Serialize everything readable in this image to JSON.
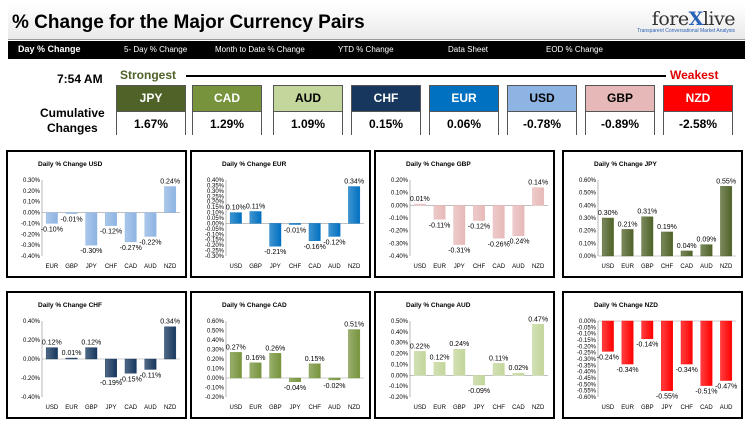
{
  "header": {
    "title": "% Change for the Major Currency Pairs",
    "logo_left": "fore",
    "logo_x": "X",
    "logo_right": "live",
    "logo_tagline": "Transparent Conversational Market Analysis"
  },
  "tabs": [
    {
      "label": "Day % Change",
      "active": true
    },
    {
      "label": "5- Day % Change",
      "active": false
    },
    {
      "label": "Month to Date % Change",
      "active": false
    },
    {
      "label": "YTD % Change",
      "active": false
    },
    {
      "label": "Data Sheet",
      "active": false
    },
    {
      "label": "EOD % Change",
      "active": false
    }
  ],
  "summary": {
    "time": "7:54 AM",
    "strongest_label": "Strongest",
    "weakest_label": "Weakest",
    "cumulative_line1": "Cumulative",
    "cumulative_line2": "Changes",
    "currencies": [
      {
        "code": "JPY",
        "value": "1.67%",
        "color": "#4f6228",
        "text_color": "#ffffff"
      },
      {
        "code": "CAD",
        "value": "1.29%",
        "color": "#77933c",
        "text_color": "#ffffff"
      },
      {
        "code": "AUD",
        "value": "1.09%",
        "color": "#c3d69b",
        "text_color": "#000000"
      },
      {
        "code": "CHF",
        "value": "0.15%",
        "color": "#17375e",
        "text_color": "#ffffff"
      },
      {
        "code": "EUR",
        "value": "0.06%",
        "color": "#0070c0",
        "text_color": "#ffffff"
      },
      {
        "code": "USD",
        "value": "-0.78%",
        "color": "#8eb4e3",
        "text_color": "#000000"
      },
      {
        "code": "GBP",
        "value": "-0.89%",
        "color": "#e6b9b8",
        "text_color": "#000000"
      },
      {
        "code": "NZD",
        "value": "-2.58%",
        "color": "#ff0000",
        "text_color": "#ffffff"
      }
    ]
  },
  "chart_data": [
    {
      "type": "bar",
      "title": "Daily % Change USD",
      "categories": [
        "EUR",
        "GBP",
        "JPY",
        "CHF",
        "CAD",
        "AUD",
        "NZD"
      ],
      "values": [
        -0.1,
        -0.01,
        -0.3,
        -0.12,
        -0.27,
        -0.22,
        0.24
      ],
      "labels": [
        "-0.10%",
        "-0.01%",
        "-0.30%",
        "-0.12%",
        "-0.27%",
        "-0.22%",
        "0.24%"
      ],
      "ylim": [
        -0.4,
        0.3
      ],
      "step": 0.1,
      "decimals": 2,
      "color": "#8eb4e3"
    },
    {
      "type": "bar",
      "title": "Daily % Change EUR",
      "categories": [
        "USD",
        "GBP",
        "JPY",
        "CHF",
        "CAD",
        "AUD",
        "NZD"
      ],
      "values": [
        0.1,
        0.11,
        -0.21,
        -0.01,
        -0.16,
        -0.12,
        0.34
      ],
      "labels": [
        "0.10%",
        "0.11%",
        "-0.21%",
        "-0.01%",
        "-0.16%",
        "-0.12%",
        "0.34%"
      ],
      "ylim": [
        -0.3,
        0.4
      ],
      "step": 0.05,
      "decimals": 2,
      "color": "#0070c0"
    },
    {
      "type": "bar",
      "title": "Daily % Change GBP",
      "categories": [
        "USD",
        "EUR",
        "JPY",
        "CHF",
        "CAD",
        "AUD",
        "NZD"
      ],
      "values": [
        0.01,
        -0.11,
        -0.31,
        -0.12,
        -0.26,
        -0.24,
        0.14
      ],
      "labels": [
        "0.01%",
        "-0.11%",
        "-0.31%",
        "-0.12%",
        "-0.26%",
        "-0.24%",
        "0.14%"
      ],
      "ylim": [
        -0.4,
        0.2
      ],
      "step": 0.1,
      "decimals": 2,
      "color": "#e6b9b8"
    },
    {
      "type": "bar",
      "title": "Daily % Change JPY",
      "categories": [
        "USD",
        "EUR",
        "GBP",
        "CHF",
        "CAD",
        "AUD",
        "NZD"
      ],
      "values": [
        0.3,
        0.21,
        0.31,
        0.19,
        0.04,
        0.09,
        0.55
      ],
      "labels": [
        "0.30%",
        "0.21%",
        "0.31%",
        "0.19%",
        "0.04%",
        "0.09%",
        "0.55%"
      ],
      "ylim": [
        0.0,
        0.6
      ],
      "step": 0.1,
      "decimals": 2,
      "color": "#4f6228"
    },
    {
      "type": "bar",
      "title": "Daily % Change CHF",
      "categories": [
        "USD",
        "EUR",
        "GBP",
        "JPY",
        "CAD",
        "AUD",
        "NZD"
      ],
      "values": [
        0.12,
        0.01,
        0.12,
        -0.19,
        -0.15,
        -0.11,
        0.34
      ],
      "labels": [
        "0.12%",
        "0.01%",
        "0.12%",
        "-0.19%",
        "-0.15%",
        "-0.11%",
        "0.34%"
      ],
      "ylim": [
        -0.4,
        0.4
      ],
      "step": 0.2,
      "decimals": 2,
      "color": "#17375e"
    },
    {
      "type": "bar",
      "title": "Daily % Change CAD",
      "categories": [
        "USD",
        "EUR",
        "GBP",
        "JPY",
        "CHF",
        "AUD",
        "NZD"
      ],
      "values": [
        0.27,
        0.16,
        0.26,
        -0.04,
        0.15,
        -0.02,
        0.51
      ],
      "labels": [
        "0.27%",
        "0.16%",
        "0.26%",
        "-0.04%",
        "0.15%",
        "-0.02%",
        "0.51%"
      ],
      "ylim": [
        -0.2,
        0.6
      ],
      "step": 0.1,
      "decimals": 2,
      "color": "#77933c"
    },
    {
      "type": "bar",
      "title": "Daily % Change AUD",
      "categories": [
        "USD",
        "EUR",
        "GBP",
        "JPY",
        "CHF",
        "CAD",
        "NZD"
      ],
      "values": [
        0.22,
        0.12,
        0.24,
        -0.09,
        0.11,
        0.02,
        0.47
      ],
      "labels": [
        "0.22%",
        "0.12%",
        "0.24%",
        "-0.09%",
        "0.11%",
        "0.02%",
        "0.47%"
      ],
      "ylim": [
        -0.2,
        0.5
      ],
      "step": 0.1,
      "decimals": 2,
      "color": "#c3d69b"
    },
    {
      "type": "bar",
      "title": "Daily % Change NZD",
      "categories": [
        "USD",
        "EUR",
        "GBP",
        "JPY",
        "CHF",
        "CAD",
        "AUD"
      ],
      "values": [
        -0.24,
        -0.34,
        -0.14,
        -0.55,
        -0.34,
        -0.51,
        -0.47
      ],
      "labels": [
        "-0.24%",
        "-0.34%",
        "-0.14%",
        "-0.55%",
        "-0.34%",
        "-0.51%",
        "-0.47%"
      ],
      "ylim": [
        -0.6,
        0.0
      ],
      "step": 0.05,
      "decimals": 2,
      "color": "#ff0000"
    }
  ]
}
